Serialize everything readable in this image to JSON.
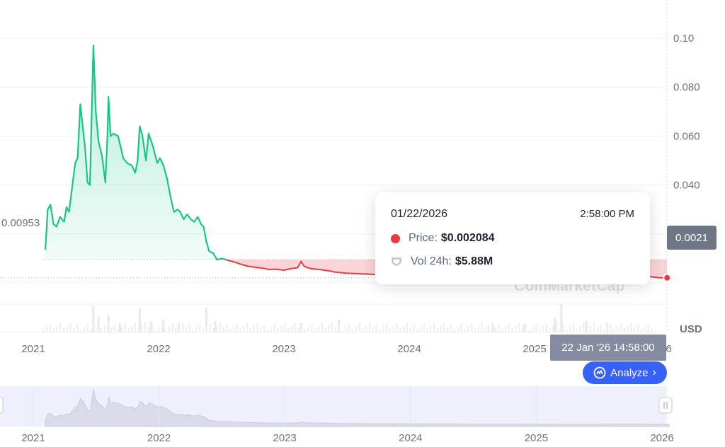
{
  "chart_data": {
    "type": "line",
    "title": "",
    "ylabel": "",
    "xlabel": "",
    "currency": "USD",
    "baseline_value": 0.00953,
    "baseline_label": "0.00953",
    "ylim": [
      0,
      0.11
    ],
    "y_ticks": [
      {
        "value": 0.1,
        "label": "0.10"
      },
      {
        "value": 0.08,
        "label": "0.080"
      },
      {
        "value": 0.06,
        "label": "0.060"
      },
      {
        "value": 0.04,
        "label": "0.040"
      },
      {
        "value": 0.02,
        "label": "0.020"
      }
    ],
    "x_ticks": [
      {
        "date": "2021-01-01",
        "label": "2021"
      },
      {
        "date": "2022-01-01",
        "label": "2022"
      },
      {
        "date": "2023-01-01",
        "label": "2023"
      },
      {
        "date": "2024-01-01",
        "label": "2024"
      },
      {
        "date": "2025-01-01",
        "label": "2025"
      },
      {
        "date": "2026-01-01",
        "label": "2026"
      }
    ],
    "x_range": [
      "2020-09-01",
      "2026-02-01"
    ],
    "series": [
      {
        "color_up": "#16c784",
        "color_down": "#ea3943",
        "points": [
          [
            "2021-02-05",
            0.0135
          ],
          [
            "2021-02-12",
            0.03
          ],
          [
            "2021-02-20",
            0.032
          ],
          [
            "2021-03-01",
            0.024
          ],
          [
            "2021-03-10",
            0.023
          ],
          [
            "2021-03-20",
            0.027
          ],
          [
            "2021-04-01",
            0.025
          ],
          [
            "2021-04-08",
            0.031
          ],
          [
            "2021-04-15",
            0.029
          ],
          [
            "2021-04-25",
            0.04
          ],
          [
            "2021-05-03",
            0.049
          ],
          [
            "2021-05-10",
            0.051
          ],
          [
            "2021-05-18",
            0.073
          ],
          [
            "2021-05-25",
            0.064
          ],
          [
            "2021-06-01",
            0.055
          ],
          [
            "2021-06-08",
            0.041
          ],
          [
            "2021-06-15",
            0.04
          ],
          [
            "2021-06-25",
            0.097
          ],
          [
            "2021-07-02",
            0.07
          ],
          [
            "2021-07-10",
            0.058
          ],
          [
            "2021-07-20",
            0.052
          ],
          [
            "2021-07-30",
            0.041
          ],
          [
            "2021-08-05",
            0.06
          ],
          [
            "2021-08-08",
            0.076
          ],
          [
            "2021-08-14",
            0.06
          ],
          [
            "2021-08-22",
            0.061
          ],
          [
            "2021-09-05",
            0.06
          ],
          [
            "2021-09-20",
            0.051
          ],
          [
            "2021-10-01",
            0.049
          ],
          [
            "2021-10-15",
            0.048
          ],
          [
            "2021-10-25",
            0.045
          ],
          [
            "2021-11-01",
            0.05
          ],
          [
            "2021-11-07",
            0.064
          ],
          [
            "2021-11-15",
            0.06
          ],
          [
            "2021-11-25",
            0.05
          ],
          [
            "2021-12-03",
            0.061
          ],
          [
            "2021-12-15",
            0.056
          ],
          [
            "2021-12-28",
            0.049
          ],
          [
            "2022-01-05",
            0.051
          ],
          [
            "2022-01-15",
            0.048
          ],
          [
            "2022-01-25",
            0.043
          ],
          [
            "2022-02-05",
            0.035
          ],
          [
            "2022-02-15",
            0.029
          ],
          [
            "2022-02-25",
            0.03
          ],
          [
            "2022-03-05",
            0.029
          ],
          [
            "2022-03-15",
            0.026
          ],
          [
            "2022-03-25",
            0.028
          ],
          [
            "2022-04-05",
            0.026
          ],
          [
            "2022-04-15",
            0.025
          ],
          [
            "2022-04-25",
            0.027
          ],
          [
            "2022-05-05",
            0.024
          ],
          [
            "2022-05-12",
            0.023
          ],
          [
            "2022-05-20",
            0.017
          ],
          [
            "2022-05-28",
            0.013
          ],
          [
            "2022-06-10",
            0.012
          ],
          [
            "2022-06-20",
            0.0095
          ],
          [
            "2022-07-05",
            0.01
          ],
          [
            "2022-07-20",
            0.0093
          ],
          [
            "2022-08-10",
            0.0085
          ],
          [
            "2022-09-01",
            0.0075
          ],
          [
            "2022-09-20",
            0.0068
          ],
          [
            "2022-10-10",
            0.0064
          ],
          [
            "2022-11-01",
            0.006
          ],
          [
            "2022-11-20",
            0.0055
          ],
          [
            "2022-12-10",
            0.0056
          ],
          [
            "2023-01-01",
            0.0052
          ],
          [
            "2023-01-20",
            0.0058
          ],
          [
            "2023-02-10",
            0.0062
          ],
          [
            "2023-02-20",
            0.0088
          ],
          [
            "2023-03-01",
            0.0068
          ],
          [
            "2023-03-20",
            0.0058
          ],
          [
            "2023-04-15",
            0.0055
          ],
          [
            "2023-05-10",
            0.005
          ],
          [
            "2023-06-01",
            0.0044
          ],
          [
            "2023-07-01",
            0.004
          ],
          [
            "2023-08-01",
            0.0038
          ],
          [
            "2023-09-01",
            0.0036
          ],
          [
            "2023-10-01",
            0.0034
          ],
          [
            "2025-11-01",
            0.0024
          ],
          [
            "2025-12-01",
            0.0026
          ],
          [
            "2026-01-01",
            0.0021
          ],
          [
            "2026-01-22",
            0.002084
          ]
        ]
      }
    ],
    "volume_bars": [
      [
        "2021-06-25",
        0.85
      ],
      [
        "2021-07-10",
        0.5
      ],
      [
        "2021-08-08",
        0.55
      ],
      [
        "2021-09-10",
        0.3
      ],
      [
        "2021-11-07",
        0.75
      ],
      [
        "2021-12-10",
        0.35
      ],
      [
        "2022-01-15",
        0.4
      ],
      [
        "2022-03-01",
        0.3
      ],
      [
        "2022-05-20",
        0.78
      ],
      [
        "2022-06-15",
        0.35
      ],
      [
        "2023-02-20",
        0.3
      ],
      [
        "2023-06-10",
        0.4
      ],
      [
        "2024-06-01",
        0.25
      ],
      [
        "2024-09-01",
        0.3
      ],
      [
        "2024-12-01",
        0.25
      ],
      [
        "2025-03-01",
        0.45
      ],
      [
        "2025-03-20",
        0.9
      ],
      [
        "2025-06-01",
        0.35
      ],
      [
        "2025-08-01",
        0.3
      ]
    ],
    "navigator_x_ticks": [
      {
        "date": "2021-01-01",
        "label": "2021"
      },
      {
        "date": "2022-01-01",
        "label": "2022"
      },
      {
        "date": "2023-01-01",
        "label": "2023"
      },
      {
        "date": "2024-01-01",
        "label": "2024"
      },
      {
        "date": "2025-01-01",
        "label": "2025"
      },
      {
        "date": "2026-01-01",
        "label": "2026"
      }
    ]
  },
  "tooltip": {
    "date": "01/22/2026",
    "time": "2:58:00 PM",
    "price_label": "Price:",
    "price_value": "$0.002084",
    "vol_label": "Vol 24h:",
    "vol_value": "$5.88M"
  },
  "current_price_tag": "0.0021",
  "currency_label": "USD",
  "crosshair_time": "22 Jan '26 14:58:00",
  "analyze_label": "Analyze",
  "watermark": "CoinMarketCap",
  "colors": {
    "up": "#16c784",
    "down": "#ea3943",
    "accent": "#3861fb",
    "grid": "#eff2f5",
    "label": "#6b7280"
  }
}
